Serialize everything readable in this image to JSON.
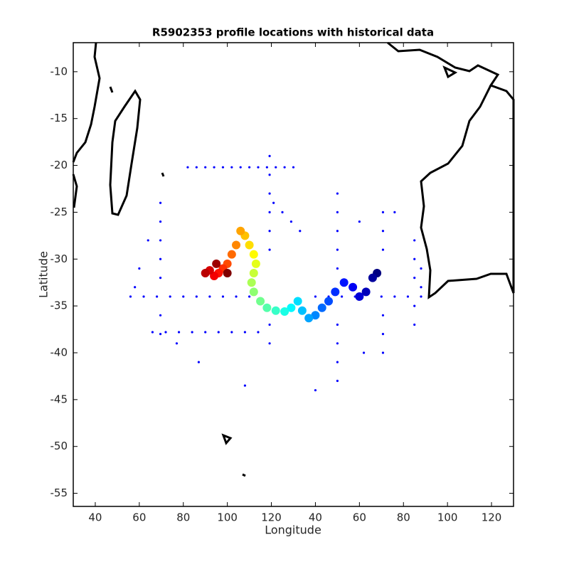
{
  "chart_data": {
    "type": "scatter",
    "title": "R5902353 profile locations with historical data",
    "xlabel": "Longitude",
    "ylabel": "Latitude",
    "xlim": [
      30,
      230
    ],
    "ylim": [
      -56.4,
      -6.9
    ],
    "xticks": [
      40,
      60,
      80,
      100,
      120,
      {
        "value": 140,
        "label": "40"
      },
      {
        "value": 160,
        "label": "60"
      },
      {
        "value": 180,
        "label": "80"
      },
      {
        "value": 200,
        "label": "100"
      },
      {
        "value": 220,
        "label": "120"
      }
    ],
    "yticks": [
      -55,
      -50,
      -45,
      -40,
      -35,
      -30,
      -25,
      -20,
      -15,
      -10
    ],
    "series": [
      {
        "color": "#0000ff",
        "x": [
          56,
          62,
          68,
          74,
          80,
          86,
          92,
          98,
          104,
          110,
          140,
          146,
          152,
          158,
          170,
          176,
          182,
          188,
          82,
          86,
          90,
          94,
          98,
          102,
          106,
          110,
          114,
          118,
          122,
          126,
          130,
          119.2,
          119.2,
          119.2,
          119.2,
          119.2,
          119.2,
          119.2,
          119.2,
          150,
          150,
          150,
          150,
          150,
          150,
          150,
          150,
          150,
          69.6,
          69.6,
          69.6,
          69.6,
          69.6,
          69.6,
          69.6,
          66,
          72,
          78,
          84,
          90,
          96,
          102,
          108,
          114,
          170.7,
          170.7,
          170.7,
          170.7,
          170.7,
          170.7,
          121,
          125,
          129,
          133,
          185,
          185,
          185,
          185,
          185,
          188,
          188,
          64,
          60,
          58,
          108,
          140,
          77,
          87,
          160,
          162,
          176
        ],
        "values": [
          -34,
          -34,
          -34,
          -34,
          -34,
          -34,
          -34,
          -34,
          -34,
          -34,
          -34,
          -34,
          -34,
          -34,
          -34,
          -34,
          -34,
          -34,
          -20.2,
          -20.2,
          -20.2,
          -20.2,
          -20.2,
          -20.2,
          -20.2,
          -20.2,
          -20.2,
          -20.2,
          -20.2,
          -20.2,
          -20.2,
          -19,
          -21,
          -23,
          -25,
          -27,
          -29,
          -37,
          -39,
          -23,
          -25,
          -27,
          -29,
          -31,
          -37,
          -39,
          -41,
          -43,
          -24,
          -26,
          -28,
          -30,
          -32,
          -36,
          -38,
          -37.8,
          -37.8,
          -37.8,
          -37.8,
          -37.8,
          -37.8,
          -37.8,
          -37.8,
          -37.8,
          -25,
          -27,
          -29,
          -36,
          -38,
          -40,
          -24,
          -25,
          -26,
          -27,
          -28,
          -30,
          -32,
          -35,
          -37,
          -31,
          -33,
          -28,
          -31,
          -33,
          -43.5,
          -44,
          -39,
          -41,
          -26,
          -40,
          -25
        ]
      },
      {
        "colormap": "jet",
        "x": [
          168,
          166,
          163,
          160,
          157,
          153,
          149,
          146,
          143,
          140,
          137,
          134,
          132,
          129,
          126,
          122,
          118,
          115,
          112,
          111,
          112,
          113,
          112,
          110,
          108,
          106,
          104,
          102,
          100,
          98,
          96,
          94,
          92,
          90,
          95,
          100
        ],
        "values": [
          -31.5,
          -32,
          -33.5,
          -34,
          -33,
          -32.5,
          -33.5,
          -34.5,
          -35.2,
          -36,
          -36.3,
          -35.5,
          -34.5,
          -35.2,
          -35.6,
          -35.5,
          -35.2,
          -34.5,
          -33.5,
          -32.5,
          -31.5,
          -30.5,
          -29.5,
          -28.5,
          -27.5,
          -27,
          -28.5,
          -29.5,
          -30.5,
          -31,
          -31.5,
          -31.8,
          -31.2,
          -31.5,
          -30.5,
          -31.5
        ]
      }
    ]
  }
}
